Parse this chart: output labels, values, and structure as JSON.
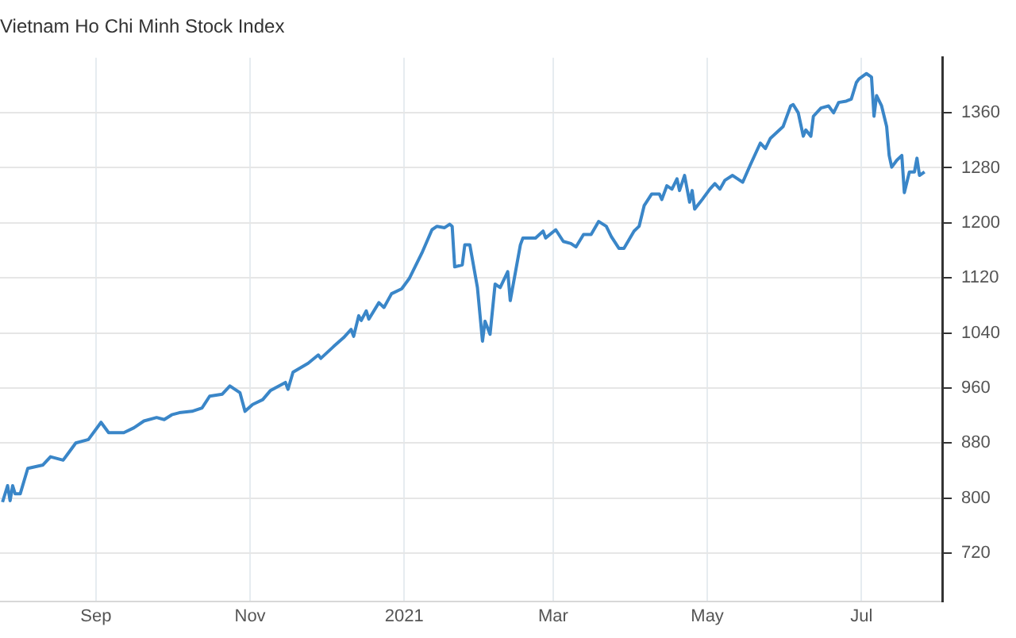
{
  "chart_data": {
    "type": "line",
    "title": "Vietnam Ho Chi Minh Stock Index",
    "x": [
      "2020-07-26",
      "2020-07-28",
      "2020-07-29",
      "2020-07-30",
      "2020-07-31",
      "2020-08-02",
      "2020-08-05",
      "2020-08-11",
      "2020-08-14",
      "2020-08-19",
      "2020-08-21",
      "2020-08-24",
      "2020-08-29",
      "2020-09-03",
      "2020-09-06",
      "2020-09-12",
      "2020-09-16",
      "2020-09-20",
      "2020-09-25",
      "2020-09-28",
      "2020-10-01",
      "2020-10-04",
      "2020-10-09",
      "2020-10-13",
      "2020-10-16",
      "2020-10-21",
      "2020-10-24",
      "2020-10-28",
      "2020-10-30",
      "2020-11-02",
      "2020-11-06",
      "2020-11-09",
      "2020-11-15",
      "2020-11-16",
      "2020-11-18",
      "2020-11-24",
      "2020-11-28",
      "2020-11-29",
      "2020-12-04",
      "2020-12-08",
      "2020-12-11",
      "2020-12-12",
      "2020-12-14",
      "2020-12-15",
      "2020-12-17",
      "2020-12-18",
      "2020-12-22",
      "2020-12-24",
      "2020-12-27",
      "2020-12-31",
      "2021-01-03",
      "2021-01-08",
      "2021-01-12",
      "2021-01-14",
      "2021-01-17",
      "2021-01-19",
      "2021-01-20",
      "2021-01-21",
      "2021-01-24",
      "2021-01-25",
      "2021-01-27",
      "2021-01-30",
      "2021-02-01",
      "2021-02-02",
      "2021-02-04",
      "2021-02-06",
      "2021-02-08",
      "2021-02-11",
      "2021-02-12",
      "2021-02-16",
      "2021-02-17",
      "2021-02-22",
      "2021-02-25",
      "2021-02-26",
      "2021-03-02",
      "2021-03-05",
      "2021-03-08",
      "2021-03-10",
      "2021-03-13",
      "2021-03-16",
      "2021-03-19",
      "2021-03-22",
      "2021-03-24",
      "2021-03-27",
      "2021-03-29",
      "2021-04-02",
      "2021-04-04",
      "2021-04-06",
      "2021-04-09",
      "2021-04-12",
      "2021-04-13",
      "2021-04-15",
      "2021-04-17",
      "2021-04-19",
      "2021-04-20",
      "2021-04-22",
      "2021-04-24",
      "2021-04-25",
      "2021-04-26",
      "2021-04-29",
      "2021-05-02",
      "2021-05-04",
      "2021-05-06",
      "2021-05-08",
      "2021-05-11",
      "2021-05-15",
      "2021-05-18",
      "2021-05-22",
      "2021-05-24",
      "2021-05-26",
      "2021-05-31",
      "2021-06-01",
      "2021-06-03",
      "2021-06-04",
      "2021-06-06",
      "2021-06-08",
      "2021-06-09",
      "2021-06-11",
      "2021-06-12",
      "2021-06-15",
      "2021-06-18",
      "2021-06-20",
      "2021-06-22",
      "2021-06-25",
      "2021-06-27",
      "2021-06-29",
      "2021-06-30",
      "2021-07-03",
      "2021-07-05",
      "2021-07-06",
      "2021-07-07",
      "2021-07-09",
      "2021-07-11",
      "2021-07-12",
      "2021-07-13",
      "2021-07-15",
      "2021-07-17",
      "2021-07-18",
      "2021-07-20",
      "2021-07-22",
      "2021-07-23",
      "2021-07-24",
      "2021-07-26"
    ],
    "series": [
      {
        "color": "#3a86c8",
        "values": [
          794,
          818,
          796,
          818,
          806,
          806,
          843,
          848,
          860,
          855,
          865,
          880,
          885,
          910,
          895,
          895,
          902,
          912,
          917,
          914,
          921,
          924,
          926,
          931,
          948,
          951,
          963,
          953,
          926,
          936,
          943,
          956,
          968,
          958,
          983,
          996,
          1008,
          1003,
          1020,
          1033,
          1045,
          1035,
          1065,
          1058,
          1072,
          1060,
          1084,
          1077,
          1097,
          1104,
          1119,
          1156,
          1190,
          1195,
          1193,
          1198,
          1195,
          1136,
          1139,
          1168,
          1168,
          1106,
          1028,
          1057,
          1038,
          1111,
          1106,
          1129,
          1087,
          1168,
          1178,
          1178,
          1188,
          1178,
          1190,
          1173,
          1170,
          1165,
          1183,
          1183,
          1202,
          1195,
          1180,
          1163,
          1163,
          1188,
          1195,
          1225,
          1242,
          1242,
          1234,
          1254,
          1249,
          1264,
          1247,
          1269,
          1230,
          1247,
          1220,
          1234,
          1249,
          1257,
          1249,
          1262,
          1269,
          1259,
          1284,
          1316,
          1308,
          1323,
          1340,
          1350,
          1370,
          1372,
          1360,
          1326,
          1335,
          1326,
          1355,
          1367,
          1370,
          1360,
          1375,
          1377,
          1380,
          1404,
          1409,
          1417,
          1412,
          1355,
          1385,
          1370,
          1340,
          1298,
          1281,
          1291,
          1298,
          1244,
          1274,
          1274,
          1294,
          1269,
          1274
        ]
      }
    ],
    "xlim": [
      "2020-07-25",
      "2021-08-02"
    ],
    "xticks": [
      {
        "value": "2020-09-01",
        "label": "Sep"
      },
      {
        "value": "2020-11-01",
        "label": "Nov"
      },
      {
        "value": "2021-01-01",
        "label": "2021"
      },
      {
        "value": "2021-03-01",
        "label": "Mar"
      },
      {
        "value": "2021-05-01",
        "label": "May"
      },
      {
        "value": "2021-07-01",
        "label": "Jul"
      }
    ],
    "ylim": [
      650,
      1440
    ],
    "yticks": [
      720,
      800,
      880,
      960,
      1040,
      1120,
      1200,
      1280,
      1360
    ],
    "grid": true,
    "legend": false,
    "marker": "none",
    "line_style": "solid"
  }
}
